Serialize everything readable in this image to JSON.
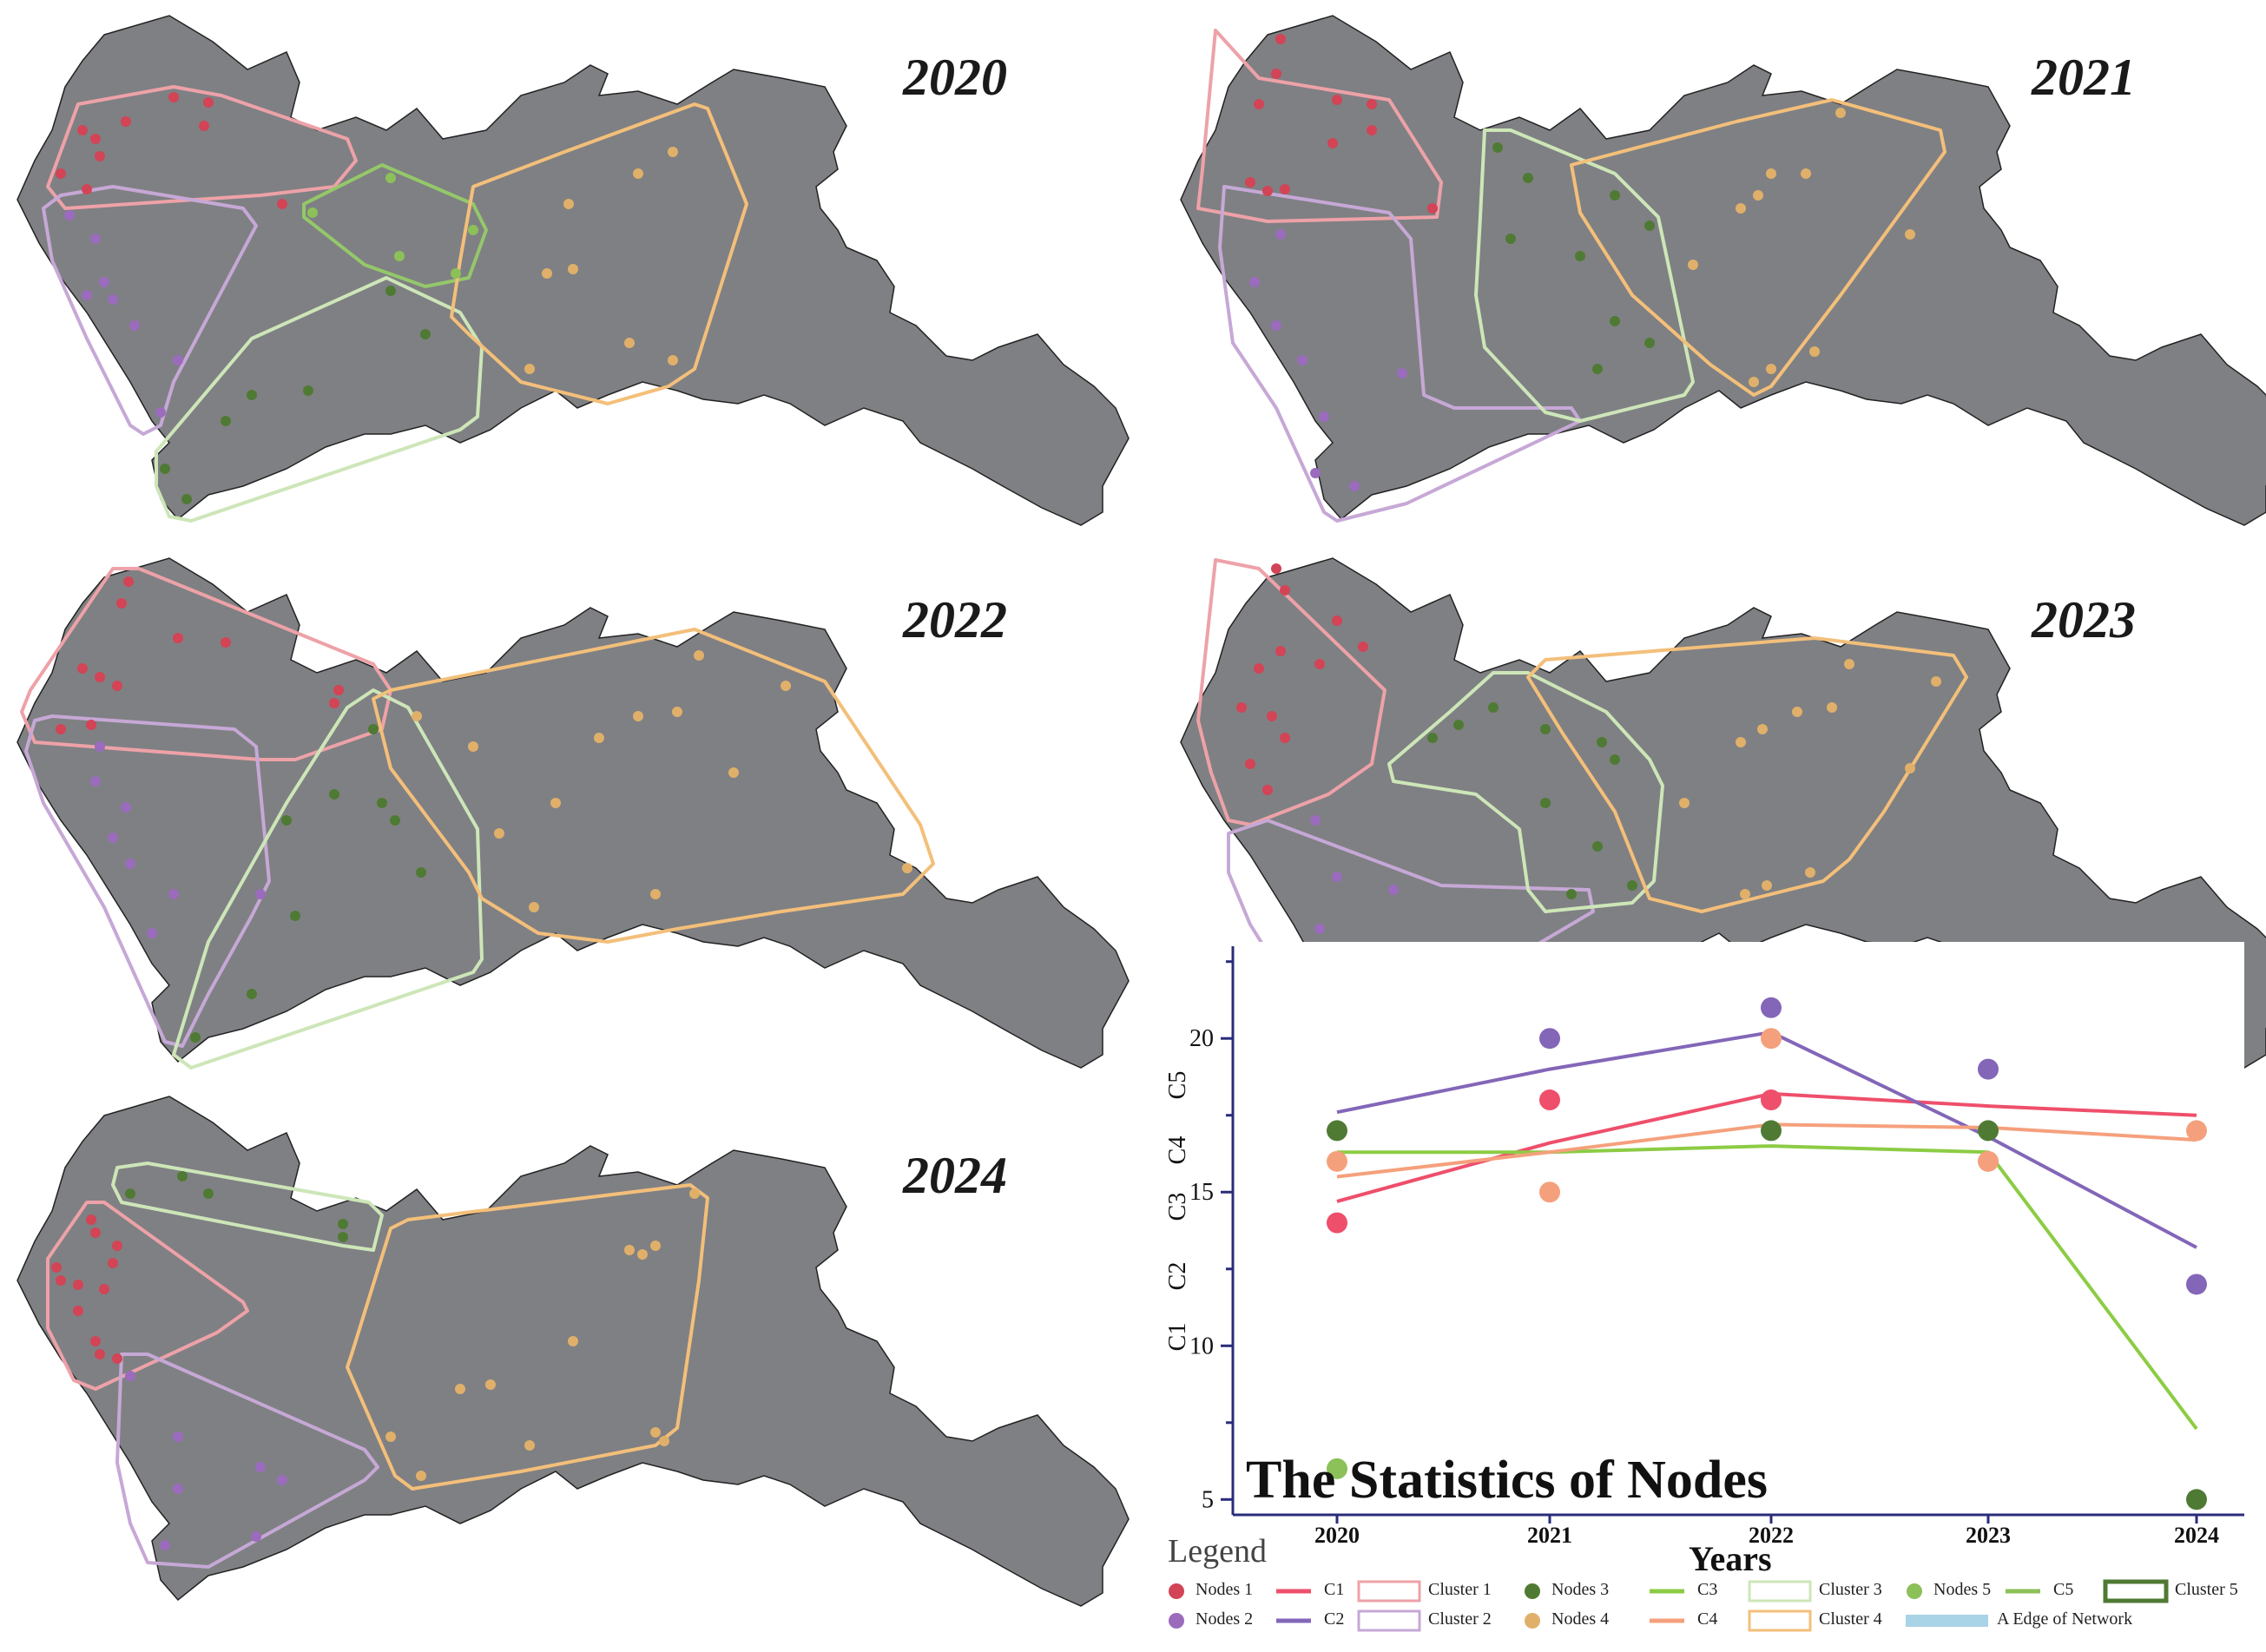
{
  "panels": [
    {
      "id": "2020",
      "label": "2020"
    },
    {
      "id": "2021",
      "label": "2021"
    },
    {
      "id": "2022",
      "label": "2022"
    },
    {
      "id": "2023",
      "label": "2023"
    },
    {
      "id": "2024",
      "label": "2024"
    }
  ],
  "colors": {
    "land": "#7f8083",
    "nodes1": "#d24456",
    "nodes2": "#9b6bbd",
    "nodes3": "#4f7a34",
    "nodes4": "#e0b06a",
    "nodes5": "#8cc058",
    "cluster1": "#eda2a8",
    "cluster2": "#c6a8d6",
    "cluster3": "#cde6b8",
    "cluster4": "#f3bf7a",
    "cluster5": "#94c86a",
    "c1": "#ee4f6b",
    "c2": "#8366b8",
    "c3": "#8ccc44",
    "c4": "#f5a07c",
    "edge": "#a9d3e6",
    "axis": "#2a2c7a"
  },
  "chart_data": {
    "type": "scatter",
    "title": "The Statistics of Nodes",
    "xlabel": "Years",
    "ylabel_stack": [
      "C5",
      "C4",
      "C3",
      "C2",
      "C1"
    ],
    "categories": [
      "2020",
      "2021",
      "2022",
      "2023",
      "2024"
    ],
    "yticks": [
      5,
      10,
      15,
      20
    ],
    "ylim": [
      4.5,
      23
    ],
    "points": [
      {
        "name": "Nodes 1",
        "color": "#ee4f6b",
        "values": [
          14,
          18,
          18,
          null,
          null
        ]
      },
      {
        "name": "Nodes 2",
        "color": "#8366b8",
        "values": [
          null,
          20,
          21,
          19,
          12
        ]
      },
      {
        "name": "Nodes 3",
        "color": "#4f7a34",
        "values": [
          17,
          null,
          17,
          17,
          5
        ]
      },
      {
        "name": "Nodes 4",
        "color": "#f5a07c",
        "values": [
          16,
          15,
          20,
          16,
          17
        ]
      },
      {
        "name": "Nodes 5",
        "color": "#8cc058",
        "values": [
          6,
          null,
          null,
          null,
          null
        ]
      }
    ],
    "series": [
      {
        "name": "C1",
        "color": "#ee4f6b",
        "values": [
          14.7,
          16.6,
          18.2,
          17.8,
          17.5
        ]
      },
      {
        "name": "C2",
        "color": "#8366b8",
        "values": [
          17.6,
          19.0,
          20.2,
          16.8,
          13.2
        ]
      },
      {
        "name": "C3",
        "color": "#8ccc44",
        "values": [
          16.3,
          16.3,
          16.5,
          16.3,
          7.3
        ]
      },
      {
        "name": "C4",
        "color": "#f5a07c",
        "values": [
          15.5,
          16.3,
          17.2,
          17.1,
          16.7
        ]
      }
    ],
    "legend_position": "bottom"
  },
  "legend": {
    "title": "Legend",
    "items": [
      {
        "label": "Nodes 1",
        "kind": "dot",
        "color": "#d24456"
      },
      {
        "label": "C1",
        "kind": "line",
        "color": "#ee4f6b"
      },
      {
        "label": "Cluster 1",
        "kind": "box",
        "color": "#eda2a8"
      },
      {
        "label": "Nodes 3",
        "kind": "dot",
        "color": "#4f7a34"
      },
      {
        "label": "C3",
        "kind": "line",
        "color": "#8ccc44"
      },
      {
        "label": "Cluster 3",
        "kind": "box",
        "color": "#cde6b8"
      },
      {
        "label": "Nodes 5",
        "kind": "dot",
        "color": "#8cc058"
      },
      {
        "label": "C5",
        "kind": "line",
        "color": "#8cc058"
      },
      {
        "label": "Cluster 5",
        "kind": "box",
        "color": "#4f7a34"
      },
      {
        "label": "Nodes 2",
        "kind": "dot",
        "color": "#9b6bbd"
      },
      {
        "label": "C2",
        "kind": "line",
        "color": "#8366b8"
      },
      {
        "label": "Cluster 2",
        "kind": "box",
        "color": "#c6a8d6"
      },
      {
        "label": "Nodes 4",
        "kind": "dot",
        "color": "#e0b06a"
      },
      {
        "label": "C4",
        "kind": "line",
        "color": "#f5a07c"
      },
      {
        "label": "Cluster 4",
        "kind": "box",
        "color": "#f3bf7a"
      },
      {
        "label": "A Edge of Network",
        "kind": "bar",
        "color": "#a9d3e6"
      }
    ]
  }
}
